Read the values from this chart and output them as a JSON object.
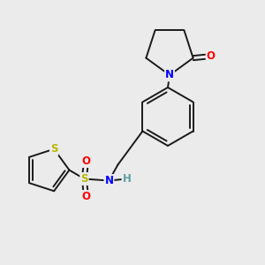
{
  "background_color": "#ebebeb",
  "bond_color": "#1a1a1a",
  "atom_colors": {
    "N": "#0000ff",
    "O": "#ff0000",
    "S_thio": "#b8b800",
    "S_sulfonyl": "#b8b800",
    "H": "#5f9ea0",
    "C": "#1a1a1a"
  },
  "font_size_atoms": 8.5,
  "line_width": 1.4
}
